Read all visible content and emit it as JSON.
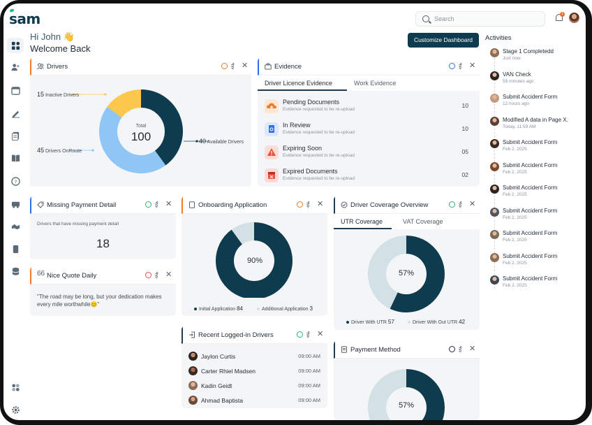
{
  "app": {
    "logo": "sam"
  },
  "search": {
    "placeholder": "Search"
  },
  "notifications": {
    "count": "1"
  },
  "greeting": {
    "hi": "Hi John 👋",
    "welcome": "Welcome Back"
  },
  "customize_label": "Customize Dashboard",
  "activities_title": "Activities",
  "activities": [
    {
      "title": "Stage 1 Completedd",
      "time": "Just now"
    },
    {
      "title": "VAN Check",
      "time": "59 minutes ago"
    },
    {
      "title": "Submit Accident Form",
      "time": "12 hours ago"
    },
    {
      "title": "Modified A data in Page X.",
      "time": "Today, 11:59 AM"
    },
    {
      "title": "Submit Accident Form",
      "time": "Feb 2, 2025"
    },
    {
      "title": "Submit Accident Form",
      "time": "Feb 2, 2025"
    },
    {
      "title": "Submit Accident Form",
      "time": "Feb 2, 2025"
    },
    {
      "title": "Submit Accident Form",
      "time": "Feb 2, 2025"
    },
    {
      "title": "Submit Accident Form",
      "time": "Feb 2, 2025"
    },
    {
      "title": "Submit Accident Form",
      "time": "Feb 2, 2025"
    },
    {
      "title": "Submit Accident Form",
      "time": "Feb 2, 2025"
    }
  ],
  "drivers_card": {
    "title": "Drivers",
    "total_label": "Total",
    "total": "100",
    "inactive": {
      "value": "15",
      "label": "Inactive Drivers"
    },
    "onroute": {
      "value": "45",
      "label": "Drivers OnRoute"
    },
    "available": {
      "value": "40",
      "label": "Available Drivers"
    }
  },
  "evidence_card": {
    "title": "Evidence",
    "tabs": [
      "Driver Licence  Evidence",
      "Work Evidence"
    ],
    "rows": [
      {
        "title": "Pending Documents",
        "sub": "Evidence requested to be re-upload",
        "count": "10",
        "color": "#fbe7d3"
      },
      {
        "title": "In Review",
        "sub": "Evidence requested to be re-upload",
        "count": "10",
        "color": "#dbe8fb"
      },
      {
        "title": "Expiring Soon",
        "sub": "Evidence requested to be re-upload",
        "count": "05",
        "color": "#fbdcd6"
      },
      {
        "title": "Expired Documents",
        "sub": "Evidence requested to be re-upload",
        "count": "02",
        "color": "#fbd9d9"
      }
    ]
  },
  "missing_payment": {
    "title": "Missing Payment Detail",
    "desc": "Drivers that have missing payment detail",
    "value": "18"
  },
  "quote": {
    "title": "Nice Quote Daily",
    "text": "\"The road may be long, but your dedication makes every mile worthwhile😊\""
  },
  "onboarding": {
    "title": "Onboarding Application",
    "center": "90%",
    "legend": [
      {
        "label": "Initial Application",
        "value": "84"
      },
      {
        "label": "Additional Application",
        "value": "3"
      }
    ]
  },
  "coverage": {
    "title": "Driver Coverage Overview",
    "tabs": [
      "UTR Coverage",
      "VAT Coverage"
    ],
    "center": "57%",
    "legend": [
      {
        "label": "Driver With UTR",
        "value": "57"
      },
      {
        "label": "Driver With Out UTR",
        "value": "42"
      }
    ]
  },
  "recent": {
    "title": "Recent Logged-in Drivers",
    "drivers": [
      {
        "name": "Jaylon Curtis",
        "time": "09:00 AM"
      },
      {
        "name": "Carter Rhiel Madsen",
        "time": "09:00 AM"
      },
      {
        "name": "Kadin Geidt",
        "time": "09:00 AM"
      },
      {
        "name": "Ahmad Baptista",
        "time": "09:00 AM"
      }
    ]
  },
  "payment_method": {
    "title": "Payment Method",
    "center": "57%"
  },
  "chart_data": [
    {
      "type": "pie",
      "title": "Drivers",
      "categories": [
        "Inactive Drivers",
        "Drivers OnRoute",
        "Available Drivers"
      ],
      "values": [
        15,
        45,
        40
      ],
      "colors": [
        "#fcc84b",
        "#8fc6f5",
        "#0f3b4f"
      ]
    },
    {
      "type": "pie",
      "title": "Onboarding Application",
      "categories": [
        "Initial Application",
        "Additional Application"
      ],
      "values": [
        84,
        3
      ],
      "colors": [
        "#0f3b4f",
        "#d2e1e6"
      ]
    },
    {
      "type": "pie",
      "title": "Driver Coverage Overview",
      "categories": [
        "Driver With UTR",
        "Driver With Out UTR"
      ],
      "values": [
        57,
        42
      ],
      "colors": [
        "#0f3b4f",
        "#d2e1e6"
      ]
    }
  ]
}
